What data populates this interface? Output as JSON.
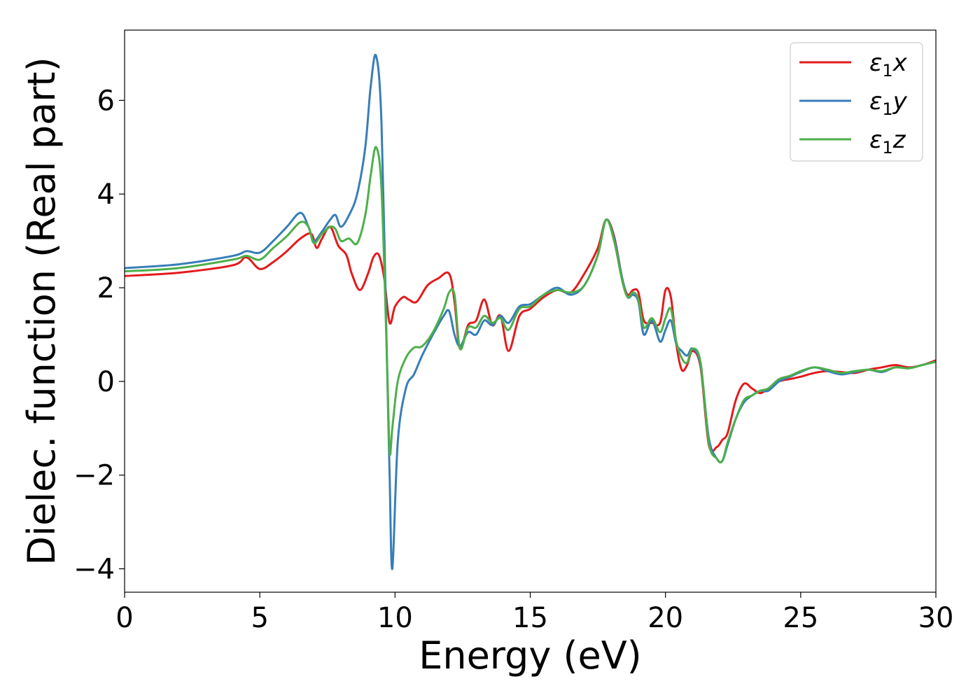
{
  "chart_data": {
    "type": "line",
    "xlabel": "Energy (eV)",
    "ylabel": "Dielec. function (Real part)",
    "xlim": [
      0,
      30
    ],
    "ylim": [
      -4.5,
      7.5
    ],
    "xticks": [
      0,
      5,
      10,
      15,
      20,
      25,
      30
    ],
    "xtick_labels": [
      "0",
      "5",
      "10",
      "15",
      "20",
      "25",
      "30"
    ],
    "yticks": [
      -4,
      -2,
      0,
      2,
      4,
      6
    ],
    "ytick_labels": [
      "−4",
      "−2",
      "0",
      "2",
      "4",
      "6"
    ],
    "grid": false,
    "legend_position": "top-right",
    "series": [
      {
        "name": "ε₁x",
        "label_main": "ε",
        "label_sub": "1",
        "label_suffix": "x",
        "color": "#e41a1c",
        "x": [
          0,
          2,
          4,
          4.5,
          5,
          5.5,
          6,
          6.5,
          6.9,
          7.1,
          7.3,
          7.6,
          7.9,
          8.2,
          8.4,
          8.7,
          9.0,
          9.2,
          9.4,
          9.6,
          9.8,
          10.0,
          10.3,
          10.5,
          10.8,
          11.2,
          11.6,
          12.0,
          12.2,
          12.4,
          12.7,
          13.0,
          13.3,
          13.6,
          13.9,
          14.2,
          14.6,
          15.0,
          15.5,
          16.0,
          16.5,
          17.0,
          17.5,
          17.8,
          18.1,
          18.4,
          18.6,
          18.8,
          19.0,
          19.2,
          19.5,
          19.8,
          20.0,
          20.2,
          20.4,
          20.6,
          20.8,
          21.0,
          21.3,
          21.6,
          21.9,
          22.1,
          22.3,
          22.6,
          22.9,
          23.2,
          23.5,
          23.8,
          24.2,
          24.6,
          25.0,
          25.5,
          26.0,
          26.5,
          27.0,
          27.5,
          28.0,
          28.5,
          29.0,
          29.5,
          30.0
        ],
        "y": [
          2.25,
          2.32,
          2.48,
          2.65,
          2.4,
          2.55,
          2.78,
          3.05,
          3.15,
          2.85,
          3.05,
          3.3,
          2.9,
          2.7,
          2.3,
          1.95,
          2.3,
          2.65,
          2.7,
          2.2,
          1.25,
          1.6,
          1.8,
          1.75,
          1.7,
          2.05,
          2.2,
          2.3,
          1.7,
          0.7,
          1.2,
          1.3,
          1.75,
          1.2,
          1.4,
          0.65,
          1.4,
          1.55,
          1.8,
          1.95,
          1.9,
          2.3,
          2.85,
          3.45,
          3.1,
          2.2,
          1.85,
          1.95,
          1.9,
          1.3,
          1.25,
          1.25,
          1.95,
          1.8,
          0.8,
          0.25,
          0.35,
          0.65,
          0.3,
          -1.35,
          -1.4,
          -1.25,
          -1.1,
          -0.4,
          -0.05,
          -0.15,
          -0.25,
          -0.15,
          0.0,
          0.05,
          0.1,
          0.18,
          0.22,
          0.2,
          0.18,
          0.25,
          0.3,
          0.35,
          0.3,
          0.35,
          0.45
        ]
      },
      {
        "name": "ε₁y",
        "label_main": "ε",
        "label_sub": "1",
        "label_suffix": "y",
        "color": "#377eb8",
        "x": [
          0,
          2,
          4,
          4.5,
          5,
          5.5,
          6,
          6.5,
          6.8,
          7.0,
          7.3,
          7.6,
          7.8,
          8.0,
          8.3,
          8.6,
          8.9,
          9.1,
          9.3,
          9.5,
          9.7,
          9.8,
          9.9,
          10.1,
          10.4,
          10.7,
          11.0,
          11.4,
          11.8,
          12.0,
          12.2,
          12.4,
          12.7,
          13.0,
          13.3,
          13.6,
          13.9,
          14.2,
          14.6,
          15.0,
          15.5,
          16.0,
          16.5,
          17.0,
          17.5,
          17.8,
          18.1,
          18.4,
          18.6,
          18.8,
          19.0,
          19.2,
          19.5,
          19.8,
          20.0,
          20.2,
          20.4,
          20.6,
          20.8,
          21.0,
          21.3,
          21.6,
          21.9,
          22.1,
          22.3,
          22.6,
          22.9,
          23.2,
          23.5,
          23.8,
          24.2,
          24.6,
          25.0,
          25.5,
          26.0,
          26.5,
          27.0,
          27.5,
          28.0,
          28.5,
          29.0,
          29.5,
          30.0
        ],
        "y": [
          2.42,
          2.5,
          2.68,
          2.78,
          2.75,
          3.0,
          3.3,
          3.6,
          3.3,
          3.0,
          3.2,
          3.45,
          3.55,
          3.3,
          3.55,
          4.0,
          5.0,
          6.3,
          6.95,
          5.5,
          0.5,
          -2.0,
          -4.0,
          -1.3,
          -0.15,
          0.15,
          0.55,
          1.0,
          1.4,
          1.5,
          1.0,
          0.75,
          1.05,
          1.0,
          1.3,
          1.2,
          1.4,
          1.25,
          1.6,
          1.65,
          1.85,
          2.0,
          1.85,
          2.05,
          2.7,
          3.45,
          3.05,
          2.2,
          1.8,
          1.85,
          1.7,
          1.0,
          1.3,
          0.85,
          1.1,
          1.3,
          0.8,
          0.65,
          0.55,
          0.7,
          0.35,
          -1.2,
          -1.65,
          -1.7,
          -1.35,
          -0.8,
          -0.45,
          -0.3,
          -0.2,
          -0.2,
          0.0,
          0.1,
          0.2,
          0.3,
          0.22,
          0.15,
          0.2,
          0.25,
          0.2,
          0.3,
          0.28,
          0.35,
          0.42
        ]
      },
      {
        "name": "ε₁z",
        "label_main": "ε",
        "label_sub": "1",
        "label_suffix": "z",
        "color": "#4daf4a",
        "x": [
          0,
          2,
          4,
          4.5,
          5,
          5.5,
          6,
          6.5,
          6.8,
          7.0,
          7.3,
          7.6,
          7.8,
          8.0,
          8.3,
          8.6,
          8.9,
          9.1,
          9.3,
          9.5,
          9.7,
          9.8,
          9.9,
          10.1,
          10.4,
          10.7,
          11.0,
          11.4,
          11.8,
          12.0,
          12.2,
          12.4,
          12.7,
          13.0,
          13.3,
          13.6,
          13.9,
          14.2,
          14.6,
          15.0,
          15.5,
          16.0,
          16.5,
          17.0,
          17.5,
          17.8,
          18.1,
          18.4,
          18.6,
          18.8,
          19.0,
          19.2,
          19.5,
          19.8,
          20.0,
          20.2,
          20.4,
          20.6,
          20.8,
          21.0,
          21.3,
          21.6,
          21.9,
          22.1,
          22.3,
          22.6,
          22.9,
          23.2,
          23.5,
          23.8,
          24.2,
          24.6,
          25.0,
          25.5,
          26.0,
          26.5,
          27.0,
          27.5,
          28.0,
          28.5,
          29.0,
          29.5,
          30.0
        ],
        "y": [
          2.35,
          2.42,
          2.6,
          2.68,
          2.6,
          2.85,
          3.1,
          3.4,
          3.3,
          2.95,
          3.15,
          3.3,
          3.25,
          3.0,
          3.05,
          2.95,
          3.55,
          4.4,
          5.0,
          4.1,
          0.5,
          -1.5,
          -1.0,
          0.0,
          0.5,
          0.72,
          0.75,
          1.05,
          1.55,
          1.9,
          1.85,
          0.7,
          1.15,
          1.15,
          1.4,
          1.25,
          1.35,
          1.1,
          1.55,
          1.6,
          1.85,
          1.95,
          1.9,
          2.05,
          2.7,
          3.45,
          3.0,
          2.15,
          1.8,
          1.9,
          1.75,
          1.15,
          1.35,
          1.05,
          1.35,
          1.55,
          0.85,
          0.5,
          0.4,
          0.7,
          0.4,
          -1.3,
          -1.65,
          -1.7,
          -1.3,
          -0.8,
          -0.4,
          -0.3,
          -0.2,
          -0.15,
          0.05,
          0.12,
          0.22,
          0.3,
          0.25,
          0.18,
          0.22,
          0.25,
          0.22,
          0.3,
          0.28,
          0.35,
          0.42
        ]
      }
    ]
  }
}
